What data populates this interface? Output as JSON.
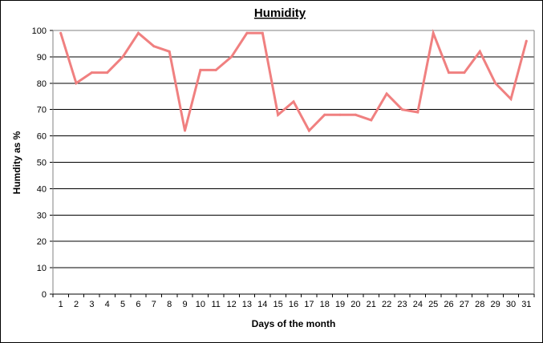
{
  "chart_data": {
    "type": "line",
    "title": "Humidity",
    "xlabel": "Days of the month",
    "ylabel": "Humdity as %",
    "x": [
      1,
      2,
      3,
      4,
      5,
      6,
      7,
      8,
      9,
      10,
      11,
      12,
      13,
      14,
      15,
      16,
      17,
      18,
      19,
      20,
      21,
      22,
      23,
      24,
      25,
      26,
      27,
      28,
      29,
      30,
      31
    ],
    "series": [
      {
        "values": [
          99,
          80,
          84,
          84,
          90,
          99,
          94,
          92,
          62,
          85,
          85,
          90,
          99,
          99,
          68,
          73,
          62,
          68,
          68,
          68,
          66,
          76,
          70,
          69,
          99,
          84,
          84,
          92,
          80,
          74,
          96
        ],
        "color": "#f08080"
      }
    ],
    "ylim": [
      0,
      100
    ],
    "yticks": [
      0,
      10,
      20,
      30,
      40,
      50,
      60,
      70,
      80,
      90,
      100
    ],
    "grid": "horizontal",
    "legend": "none",
    "plot_background": "#ffffff",
    "grid_color": "#000000"
  }
}
